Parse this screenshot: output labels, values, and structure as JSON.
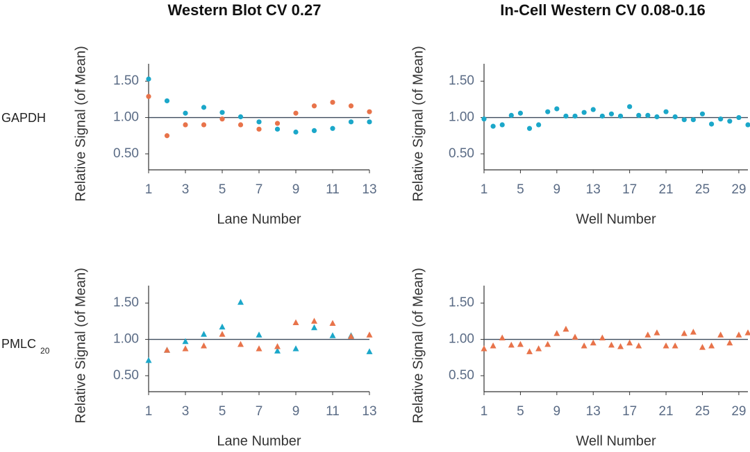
{
  "figure": {
    "column_titles": [
      "Western Blot CV 0.27",
      "In-Cell Western CV 0.08-0.16"
    ],
    "row_labels": [
      {
        "text": "GAPDH"
      },
      {
        "text": "PMLC",
        "subscript": "20"
      }
    ]
  },
  "chart_data": [
    {
      "type": "scatter",
      "xlabel": "Lane Number",
      "ylabel": "Relative Signal (of Mean)",
      "x": [
        1,
        2,
        3,
        4,
        5,
        6,
        7,
        8,
        9,
        10,
        11,
        12,
        13
      ],
      "series": [
        {
          "color": "#1ba7c9",
          "marker": "circle",
          "values": [
            1.53,
            1.23,
            1.06,
            1.14,
            1.07,
            1.01,
            0.94,
            0.84,
            0.8,
            0.82,
            0.85,
            0.94,
            0.94
          ]
        },
        {
          "color": "#e8734a",
          "marker": "circle",
          "values": [
            1.29,
            0.75,
            0.9,
            0.9,
            0.98,
            0.9,
            0.84,
            0.92,
            1.06,
            1.16,
            1.21,
            1.16,
            1.08
          ]
        }
      ],
      "xlim": [
        1,
        13
      ],
      "xticks": [
        1,
        3,
        5,
        7,
        9,
        11,
        13
      ],
      "ylim": [
        0.28,
        1.74
      ],
      "yticks": [
        {
          "value": 0.5,
          "label": "0.50"
        },
        {
          "value": 1,
          "label": "1.00"
        },
        {
          "value": 1.5,
          "label": "1.50"
        }
      ],
      "reference_line": 1
    },
    {
      "type": "scatter",
      "xlabel": "Well Number",
      "ylabel": "Relative Signal (of Mean)",
      "x": [
        1,
        2,
        3,
        4,
        5,
        6,
        7,
        8,
        9,
        10,
        11,
        12,
        13,
        14,
        15,
        16,
        17,
        18,
        19,
        20,
        21,
        22,
        23,
        24,
        25,
        26,
        27,
        28,
        29,
        30
      ],
      "series": [
        {
          "color": "#1ba7c9",
          "marker": "circle",
          "values": [
            0.98,
            0.88,
            0.9,
            1.03,
            1.06,
            0.85,
            0.9,
            1.08,
            1.12,
            1.02,
            1.02,
            1.07,
            1.11,
            1.02,
            1.05,
            1.02,
            1.15,
            1.03,
            1.03,
            1.01,
            1.08,
            1.01,
            0.97,
            0.97,
            1.05,
            0.91,
            0.98,
            0.95,
            1.0,
            0.9
          ]
        }
      ],
      "xlim": [
        1,
        30
      ],
      "xticks": [
        1,
        5,
        9,
        13,
        17,
        21,
        25,
        29
      ],
      "ylim": [
        0.28,
        1.74
      ],
      "yticks": [
        {
          "value": 0.5,
          "label": "0.50"
        },
        {
          "value": 1,
          "label": "1.00"
        },
        {
          "value": 1.5,
          "label": "1.50"
        }
      ],
      "reference_line": 1
    },
    {
      "type": "scatter",
      "xlabel": "Lane Number",
      "ylabel": "Relative Signal (of Mean)",
      "x": [
        1,
        2,
        3,
        4,
        5,
        6,
        7,
        8,
        9,
        10,
        11,
        12,
        13
      ],
      "series": [
        {
          "color": "#1ba7c9",
          "marker": "triangle",
          "values": [
            0.71,
            0.85,
            0.97,
            1.07,
            1.17,
            1.51,
            1.06,
            0.84,
            0.87,
            1.16,
            1.05,
            1.05,
            0.83
          ]
        },
        {
          "color": "#e8734a",
          "marker": "triangle",
          "values": [
            null,
            0.85,
            0.87,
            0.91,
            1.07,
            0.93,
            0.87,
            0.9,
            1.23,
            1.25,
            1.22,
            1.04,
            1.06
          ]
        }
      ],
      "xlim": [
        1,
        13
      ],
      "xticks": [
        1,
        3,
        5,
        7,
        9,
        11,
        13
      ],
      "ylim": [
        0.28,
        1.74
      ],
      "yticks": [
        {
          "value": 0.5,
          "label": "0.50"
        },
        {
          "value": 1,
          "label": "1.00"
        },
        {
          "value": 1.5,
          "label": "1.50"
        }
      ],
      "reference_line": 1
    },
    {
      "type": "scatter",
      "xlabel": "Well Number",
      "ylabel": "Relative Signal (of Mean)",
      "x": [
        1,
        2,
        3,
        4,
        5,
        6,
        7,
        8,
        9,
        10,
        11,
        12,
        13,
        14,
        15,
        16,
        17,
        18,
        19,
        20,
        21,
        22,
        23,
        24,
        25,
        26,
        27,
        28,
        29,
        30
      ],
      "series": [
        {
          "color": "#e8734a",
          "marker": "triangle",
          "values": [
            0.87,
            0.91,
            1.02,
            0.92,
            0.93,
            0.83,
            0.87,
            0.93,
            1.08,
            1.14,
            1.03,
            0.91,
            0.95,
            1.02,
            0.92,
            0.9,
            0.95,
            0.91,
            1.06,
            1.09,
            0.91,
            0.91,
            1.08,
            1.1,
            0.89,
            0.91,
            1.06,
            0.95,
            1.06,
            1.09
          ]
        }
      ],
      "xlim": [
        1,
        30
      ],
      "xticks": [
        1,
        5,
        9,
        13,
        17,
        21,
        25,
        29
      ],
      "ylim": [
        0.28,
        1.74
      ],
      "yticks": [
        {
          "value": 0.5,
          "label": "0.50"
        },
        {
          "value": 1,
          "label": "1.00"
        },
        {
          "value": 1.5,
          "label": "1.50"
        }
      ],
      "reference_line": 1
    }
  ]
}
